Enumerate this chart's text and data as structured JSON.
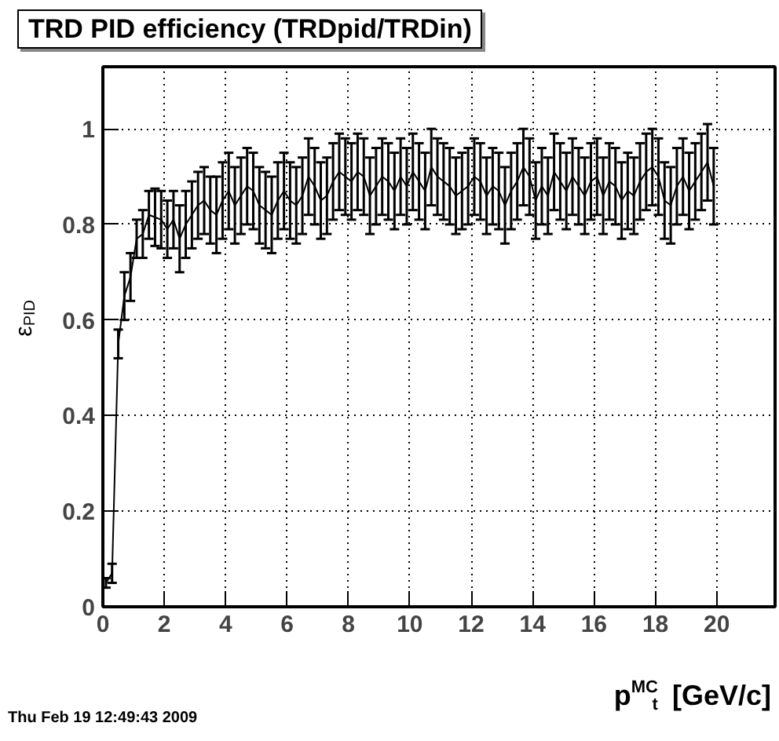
{
  "chart_data": {
    "type": "line",
    "title": "TRD PID efficiency (TRDpid/TRDin)",
    "xlabel": "p$_{t}$$^{MC}$ [GeV/c]",
    "ylabel": "ε$_{PID}$",
    "annotations": [
      "Thu Feb 19 12:49:43 2009"
    ],
    "xlim": [
      0,
      21.9
    ],
    "ylim": [
      0,
      1.13
    ],
    "xticks": [
      0,
      2,
      4,
      6,
      8,
      10,
      12,
      14,
      16,
      18,
      20
    ],
    "yticks": [
      0,
      0.2,
      0.4,
      0.6,
      0.8,
      1
    ],
    "grid": true,
    "marker": "none",
    "line_style": "solid",
    "x": [
      0.1,
      0.3,
      0.5,
      0.7,
      0.9,
      1.1,
      1.3,
      1.5,
      1.7,
      1.9,
      2.1,
      2.3,
      2.5,
      2.7,
      2.9,
      3.1,
      3.3,
      3.5,
      3.7,
      3.9,
      4.1,
      4.3,
      4.5,
      4.7,
      4.9,
      5.1,
      5.3,
      5.5,
      5.7,
      5.9,
      6.1,
      6.3,
      6.5,
      6.7,
      6.9,
      7.1,
      7.3,
      7.5,
      7.7,
      7.9,
      8.1,
      8.3,
      8.5,
      8.7,
      8.9,
      9.1,
      9.3,
      9.5,
      9.7,
      9.9,
      10.1,
      10.3,
      10.5,
      10.7,
      10.9,
      11.1,
      11.3,
      11.5,
      11.7,
      11.9,
      12.1,
      12.3,
      12.5,
      12.7,
      12.9,
      13.1,
      13.3,
      13.5,
      13.7,
      13.9,
      14.1,
      14.3,
      14.5,
      14.7,
      14.9,
      15.1,
      15.3,
      15.5,
      15.7,
      15.9,
      16.1,
      16.3,
      16.5,
      16.7,
      16.9,
      17.1,
      17.3,
      17.5,
      17.7,
      17.9,
      18.1,
      18.3,
      18.5,
      18.7,
      18.9,
      19.1,
      19.3,
      19.5,
      19.7,
      19.9
    ],
    "series": [
      {
        "color": "#000000",
        "values": [
          0.05,
          0.07,
          0.55,
          0.65,
          0.69,
          0.77,
          0.78,
          0.82,
          0.815,
          0.81,
          0.79,
          0.81,
          0.77,
          0.8,
          0.82,
          0.84,
          0.85,
          0.83,
          0.82,
          0.85,
          0.87,
          0.84,
          0.86,
          0.88,
          0.87,
          0.84,
          0.83,
          0.82,
          0.85,
          0.87,
          0.85,
          0.84,
          0.86,
          0.9,
          0.88,
          0.85,
          0.86,
          0.89,
          0.91,
          0.9,
          0.89,
          0.91,
          0.9,
          0.86,
          0.88,
          0.9,
          0.89,
          0.87,
          0.9,
          0.88,
          0.91,
          0.89,
          0.87,
          0.92,
          0.9,
          0.89,
          0.88,
          0.86,
          0.87,
          0.88,
          0.9,
          0.89,
          0.86,
          0.88,
          0.87,
          0.84,
          0.87,
          0.89,
          0.92,
          0.9,
          0.85,
          0.88,
          0.86,
          0.91,
          0.89,
          0.87,
          0.9,
          0.88,
          0.86,
          0.89,
          0.9,
          0.86,
          0.89,
          0.88,
          0.85,
          0.87,
          0.86,
          0.89,
          0.91,
          0.92,
          0.9,
          0.85,
          0.84,
          0.88,
          0.9,
          0.87,
          0.89,
          0.91,
          0.93,
          0.88
        ],
        "errors": [
          0.01,
          0.02,
          0.03,
          0.05,
          0.05,
          0.04,
          0.05,
          0.05,
          0.06,
          0.06,
          0.06,
          0.06,
          0.07,
          0.07,
          0.07,
          0.07,
          0.07,
          0.07,
          0.08,
          0.08,
          0.08,
          0.08,
          0.08,
          0.08,
          0.08,
          0.08,
          0.08,
          0.08,
          0.08,
          0.08,
          0.08,
          0.08,
          0.08,
          0.08,
          0.08,
          0.08,
          0.08,
          0.08,
          0.08,
          0.08,
          0.08,
          0.08,
          0.08,
          0.08,
          0.08,
          0.08,
          0.08,
          0.08,
          0.08,
          0.08,
          0.08,
          0.08,
          0.08,
          0.08,
          0.08,
          0.08,
          0.08,
          0.08,
          0.08,
          0.08,
          0.08,
          0.08,
          0.08,
          0.08,
          0.08,
          0.08,
          0.08,
          0.08,
          0.08,
          0.08,
          0.08,
          0.08,
          0.08,
          0.08,
          0.08,
          0.08,
          0.08,
          0.08,
          0.08,
          0.08,
          0.08,
          0.08,
          0.08,
          0.08,
          0.08,
          0.08,
          0.08,
          0.08,
          0.08,
          0.08,
          0.08,
          0.08,
          0.08,
          0.08,
          0.08,
          0.08,
          0.08,
          0.08,
          0.08,
          0.08
        ]
      }
    ]
  }
}
